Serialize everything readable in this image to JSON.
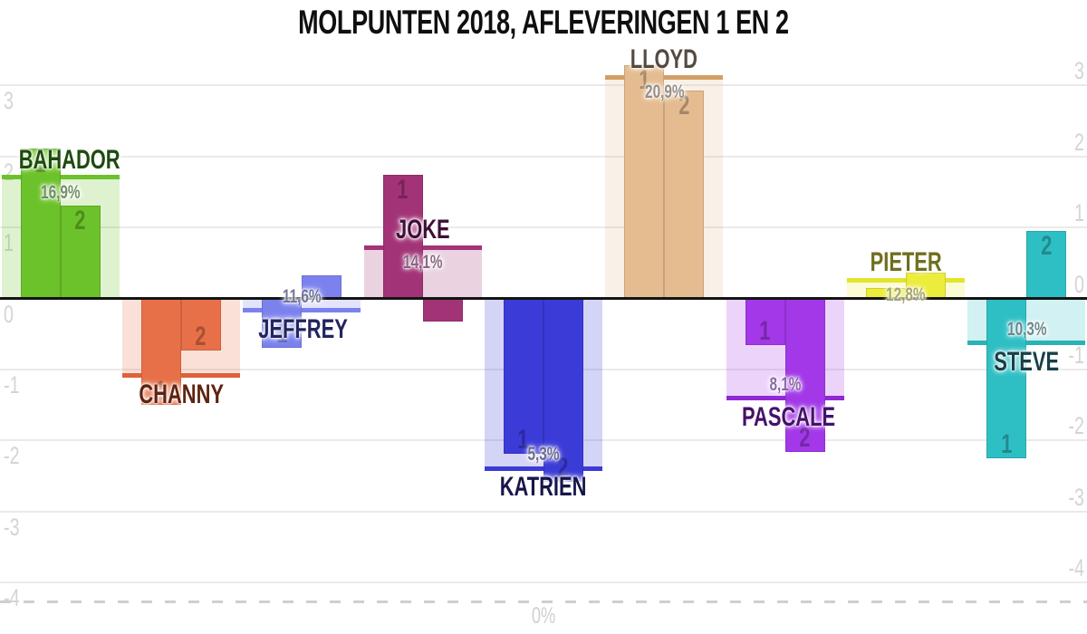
{
  "title": "MOLPUNTEN 2018, AFLEVERINGEN 1 EN 2",
  "chart_data": {
    "type": "bar",
    "title": "MOLPUNTEN 2018, AFLEVERINGEN 1 EN 2",
    "value_axis": {
      "ticks": [
        "3",
        "2",
        "1",
        "0",
        "-1",
        "-2",
        "-3",
        "-4"
      ],
      "tick_values": [
        3,
        2,
        1,
        0,
        -1,
        -2,
        -3,
        -4
      ],
      "range": [
        -4.27,
        3.35
      ],
      "sides": "left-and-right",
      "grid": true,
      "tick_color": "#d4d4d4"
    },
    "percent_axis": {
      "zero_label": "0%",
      "zero_line_style": "dashed",
      "zero_line_color": "#cfcfcf"
    },
    "episode_labels": [
      "1",
      "2"
    ],
    "people": [
      {
        "name": "BAHADOR",
        "episode_1": 2.11,
        "episode_2": 1.31,
        "percent": 16.9,
        "percent_label": "16,9%",
        "color": "#6CC22A",
        "edge": "#6CC22A",
        "dark": "#1E4A10"
      },
      {
        "name": "CHANNY",
        "episode_1": -1.5,
        "episode_2": -0.73,
        "percent": 9.0,
        "percent_label": "",
        "color": "#E87048",
        "edge": "#E06038",
        "dark": "#5E2410"
      },
      {
        "name": "JEFFREY",
        "episode_1": -0.7,
        "episode_2": 0.32,
        "percent": 11.6,
        "percent_label": "11,6%",
        "color": "#7B82EE",
        "edge": "#7B82EE",
        "dark": "#23255C"
      },
      {
        "name": "JOKE",
        "episode_1": 1.74,
        "episode_2": -0.32,
        "percent": 14.1,
        "percent_label": "14,1%",
        "color": "#A23377",
        "edge": "#A23377",
        "dark": "#3F1038"
      },
      {
        "name": "KATRIEN",
        "episode_1": -2.19,
        "episode_2": -2.58,
        "percent": 5.3,
        "percent_label": "5,3%",
        "color": "#3B3BD8",
        "edge": "#3B3BD8",
        "dark": "#16164A"
      },
      {
        "name": "LLOYD",
        "episode_1": 3.28,
        "episode_2": 2.93,
        "percent": 20.9,
        "percent_label": "20,9%",
        "color": "#E5BC90",
        "edge": "#D39F66",
        "dark": "#564A41"
      },
      {
        "name": "PASCALE",
        "episode_1": -0.66,
        "episode_2": -2.16,
        "percent": 8.1,
        "percent_label": "8,1%",
        "color": "#A238E8",
        "edge": "#9128D4",
        "dark": "#451269"
      },
      {
        "name": "PIETER",
        "episode_1": 0.15,
        "episode_2": 0.36,
        "percent": 12.8,
        "percent_label": "12,8%",
        "color": "#ECEC3A",
        "edge": "#E4E42E",
        "dark": "#6F6F1F"
      },
      {
        "name": "STEVE",
        "episode_1": -2.25,
        "episode_2": 0.95,
        "percent": 10.3,
        "percent_label": "10,3%",
        "color": "#2EBFC4",
        "edge": "#2AB2B8",
        "dark": "#17404A"
      }
    ]
  }
}
